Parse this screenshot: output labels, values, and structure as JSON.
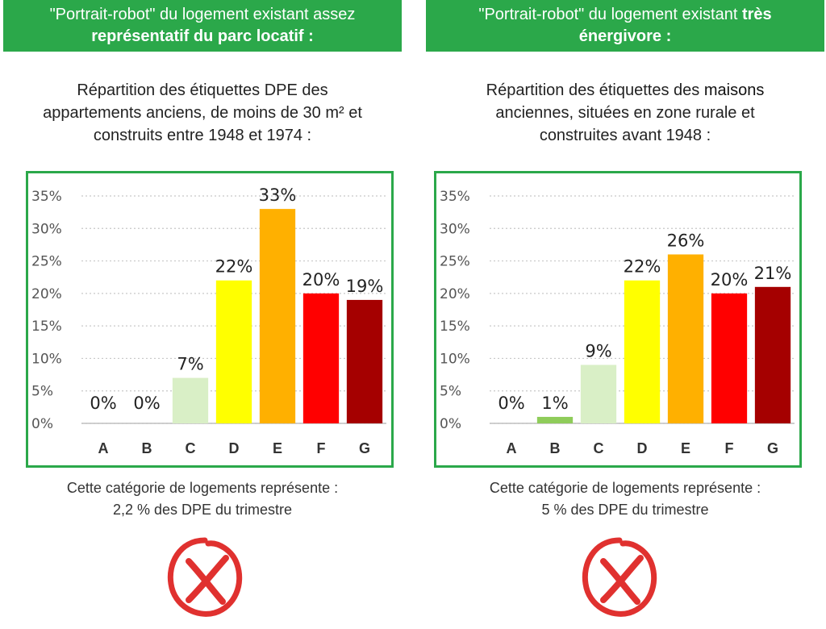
{
  "panels": [
    {
      "header_line1": "\"Portrait-robot\" du logement existant assez",
      "header_line2": "représentatif du parc locatif :",
      "subtitle_line1": "Répartition des étiquettes DPE des",
      "subtitle_line2": "appartements anciens, de moins de 30 m² et",
      "subtitle_line3": "construits entre 1948 et 1974",
      "subtitle_suffix": " :",
      "footer_line1": "Cette catégorie de logements représente :",
      "footer_line2": "2,2 % des DPE du trimestre"
    },
    {
      "header_line1": "\"Portrait-robot\" du logement existant ",
      "header_bold": "très",
      "header_line2": "énergivore :",
      "subtitle_line1_a": "Répartition des étiquettes des ",
      "subtitle_line1_b": "maisons",
      "subtitle_line2": "anciennes, situées en zone rurale et",
      "subtitle_line3": "construites avant 1948",
      "subtitle_suffix": " :",
      "footer_line1": "Cette catégorie de logements représente :",
      "footer_line2": "5 % des DPE du trimestre"
    }
  ],
  "icons": [
    "red-cross-circle-icon",
    "red-cross-circle-icon"
  ],
  "chart_data": [
    {
      "type": "bar",
      "categories": [
        "A",
        "B",
        "C",
        "D",
        "E",
        "F",
        "G"
      ],
      "values": [
        0,
        0,
        7,
        22,
        33,
        20,
        19
      ],
      "value_labels": [
        "0%",
        "0%",
        "7%",
        "22%",
        "33%",
        "20%",
        "19%"
      ],
      "colors": [
        "#2e9e4f",
        "#8fcc5a",
        "#d9efc6",
        "#ffff00",
        "#ffb000",
        "#ff0000",
        "#a50000"
      ],
      "yticks": [
        "0%",
        "5%",
        "10%",
        "15%",
        "20%",
        "25%",
        "30%",
        "35%"
      ],
      "ylim": [
        0,
        35
      ],
      "grid": true
    },
    {
      "type": "bar",
      "categories": [
        "A",
        "B",
        "C",
        "D",
        "E",
        "F",
        "G"
      ],
      "values": [
        0,
        1,
        9,
        22,
        26,
        20,
        21
      ],
      "value_labels": [
        "0%",
        "1%",
        "9%",
        "22%",
        "26%",
        "20%",
        "21%"
      ],
      "colors": [
        "#2e9e4f",
        "#8fcc5a",
        "#d9efc6",
        "#ffff00",
        "#ffb000",
        "#ff0000",
        "#a50000"
      ],
      "yticks": [
        "0%",
        "5%",
        "10%",
        "15%",
        "20%",
        "25%",
        "30%",
        "35%"
      ],
      "ylim": [
        0,
        35
      ],
      "grid": true
    }
  ]
}
